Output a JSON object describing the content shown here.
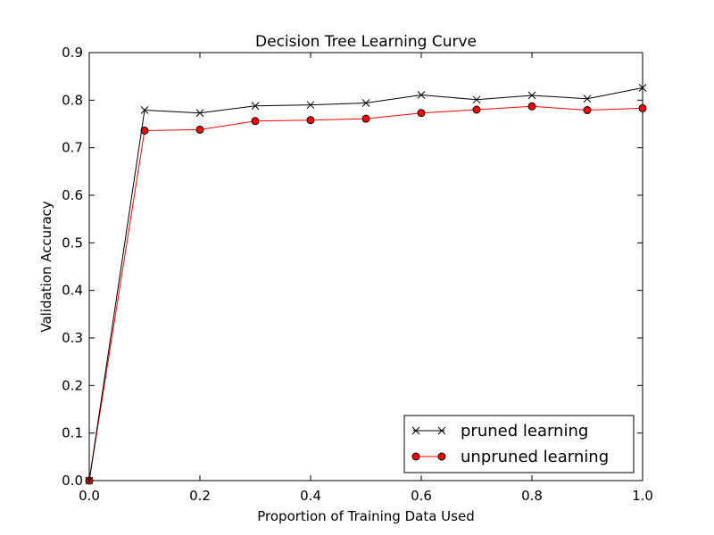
{
  "chart_data": {
    "type": "line",
    "title": "Decision Tree Learning Curve",
    "xlabel": "Proportion of Training Data Used",
    "ylabel": "Validation Accuracy",
    "xlim": [
      0.0,
      1.0
    ],
    "ylim": [
      0.0,
      0.9
    ],
    "x_ticks": [
      "0.0",
      "0.2",
      "0.4",
      "0.6",
      "0.8",
      "1.0"
    ],
    "y_ticks": [
      "0.0",
      "0.1",
      "0.2",
      "0.3",
      "0.4",
      "0.5",
      "0.6",
      "0.7",
      "0.8",
      "0.9"
    ],
    "grid": false,
    "legend_position": "lower-right",
    "x": [
      0.0,
      0.1,
      0.2,
      0.3,
      0.4,
      0.5,
      0.6,
      0.7,
      0.8,
      0.9,
      1.0
    ],
    "series": [
      {
        "name": "pruned learning",
        "color": "#000000",
        "marker": "x",
        "values": [
          0.0,
          0.779,
          0.773,
          0.788,
          0.79,
          0.794,
          0.811,
          0.801,
          0.81,
          0.803,
          0.826
        ]
      },
      {
        "name": "unpruned learning",
        "color": "#ff0000",
        "marker": "circle",
        "values": [
          0.0,
          0.736,
          0.738,
          0.756,
          0.758,
          0.761,
          0.773,
          0.78,
          0.787,
          0.779,
          0.783
        ]
      }
    ]
  }
}
